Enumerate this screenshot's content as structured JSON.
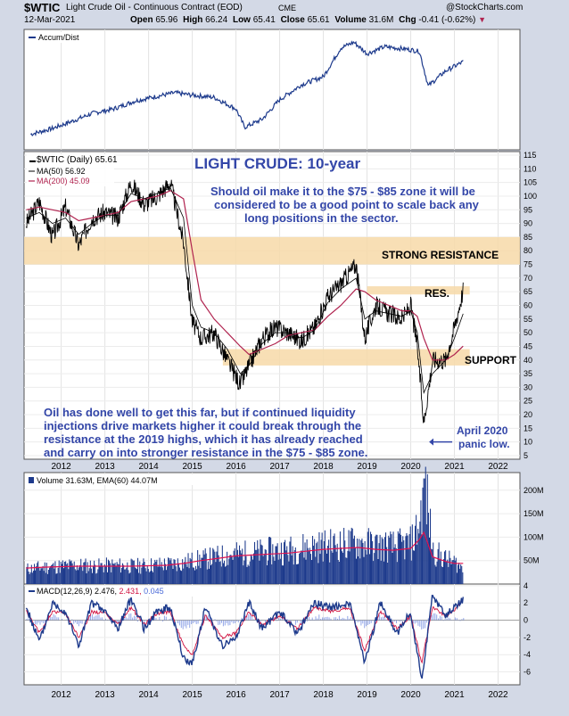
{
  "header": {
    "symbol": "$WTIC",
    "name": "Light Crude Oil - Continuous Contract (EOD)",
    "exchange": "CME",
    "source": "@StockCharts.com",
    "date": "12-Mar-2021",
    "open_label": "Open",
    "open": "65.96",
    "high_label": "High",
    "high": "66.24",
    "low_label": "Low",
    "low": "65.41",
    "close_label": "Close",
    "close": "65.61",
    "volume_label": "Volume",
    "volume": "31.6M",
    "chg_label": "Chg",
    "chg": "-0.41 (-0.62%)",
    "chg_arrow": "▼"
  },
  "annotations": {
    "title": "LIGHT CRUDE: 10-year",
    "note_line1": "Should oil make it to the $75 - $85 zone it will be",
    "note_line2": "considered to be a good point to scale back any",
    "note_line3": "long positions in the sector.",
    "strong_resistance": "STRONG RESISTANCE",
    "res": "RES.",
    "support": "SUPPORT",
    "bottom_line1": "Oil has done well to get this far, but if continued liquidity",
    "bottom_line2": "injections drive markets higher it could break through the",
    "bottom_line3": "resistance at the 2019 highs, which it has already reached",
    "bottom_line4": "and carry on into stronger resistance in the $75 - $85 zone.",
    "april_line1": "April 2020",
    "april_line2": "panic low."
  },
  "colors": {
    "frame_bg": "#d3d9e6",
    "panel_bg": "#ffffff",
    "price": "#000000",
    "ma50": "#000000",
    "ma200": "#b0234f",
    "accum": "#1d3a8c",
    "volume_bar": "#1d3a8c",
    "volume_ema": "#e0114f",
    "macd": "#1d3a8c",
    "macd_signal": "#d0113f",
    "macd_hist": "#4a6ad8",
    "zone": "#f7d9a8",
    "annotation": "#3346a8"
  },
  "chart_data": [
    {
      "type": "line",
      "panel": "accum_dist",
      "legend": [
        "Accum/Dist"
      ],
      "x": [
        2011.3,
        2011.8,
        2012.3,
        2012.7,
        2013.2,
        2013.7,
        2014.2,
        2014.6,
        2015.0,
        2015.5,
        2016.0,
        2016.2,
        2016.6,
        2017.0,
        2017.5,
        2018.0,
        2018.4,
        2018.7,
        2019.0,
        2019.4,
        2019.9,
        2020.2,
        2020.4,
        2020.8,
        2021.2
      ],
      "y": [
        12,
        17,
        24,
        30,
        34,
        41,
        45,
        48,
        46,
        44,
        34,
        18,
        25,
        42,
        55,
        62,
        87,
        92,
        82,
        88,
        86,
        84,
        54,
        67,
        75
      ],
      "ylim": [
        0,
        100
      ],
      "unit": "relative"
    },
    {
      "type": "line",
      "panel": "price",
      "legend": [
        "$WTIC (Daily) 65.61",
        "MA(50) 56.92",
        "MA(200) 45.09"
      ],
      "x": [
        2011.2,
        2011.5,
        2011.8,
        2012.1,
        2012.4,
        2012.7,
        2013.0,
        2013.3,
        2013.6,
        2013.9,
        2014.2,
        2014.5,
        2014.8,
        2015.0,
        2015.2,
        2015.5,
        2015.8,
        2016.1,
        2016.3,
        2016.6,
        2016.9,
        2017.2,
        2017.5,
        2017.8,
        2018.1,
        2018.4,
        2018.75,
        2018.95,
        2019.2,
        2019.5,
        2019.8,
        2020.0,
        2020.15,
        2020.3,
        2020.5,
        2020.8,
        2021.0,
        2021.2
      ],
      "close": [
        90,
        98,
        85,
        96,
        82,
        92,
        94,
        92,
        105,
        97,
        100,
        105,
        83,
        54,
        48,
        50,
        40,
        31,
        38,
        48,
        52,
        50,
        47,
        52,
        63,
        68,
        75,
        48,
        60,
        57,
        55,
        60,
        45,
        17,
        40,
        40,
        52,
        65.61
      ],
      "ma50": [
        92,
        94,
        90,
        92,
        86,
        90,
        93,
        93,
        101,
        99,
        101,
        103,
        92,
        60,
        52,
        50,
        44,
        35,
        38,
        46,
        50,
        50,
        48,
        51,
        61,
        66,
        70,
        55,
        58,
        57,
        56,
        58,
        50,
        28,
        35,
        40,
        48,
        56.92
      ],
      "ma200": [
        95,
        96,
        95,
        94,
        91,
        92,
        93,
        94,
        98,
        99,
        100,
        102,
        99,
        80,
        62,
        55,
        50,
        45,
        42,
        44,
        46,
        49,
        50,
        51,
        56,
        60,
        66,
        65,
        62,
        60,
        58,
        58,
        56,
        48,
        40,
        40,
        42,
        45.09
      ],
      "ylim": [
        5,
        115
      ],
      "zones": [
        {
          "label": "STRONG RESISTANCE",
          "from": 75,
          "to": 85
        },
        {
          "label": "RES.",
          "from": 64,
          "to": 67
        },
        {
          "label": "SUPPORT",
          "from": 38,
          "to": 44
        }
      ]
    },
    {
      "type": "bar",
      "panel": "volume",
      "legend": [
        "Volume 31.63M",
        "EMA(60) 44.07M"
      ],
      "x": [
        2011.2,
        2011.6,
        2012.0,
        2012.4,
        2012.8,
        2013.2,
        2013.6,
        2014.0,
        2014.4,
        2014.8,
        2015.2,
        2015.6,
        2016.0,
        2016.4,
        2016.8,
        2017.2,
        2017.6,
        2018.0,
        2018.4,
        2018.8,
        2019.2,
        2019.6,
        2020.0,
        2020.2,
        2020.3,
        2020.5,
        2020.8,
        2021.0,
        2021.2
      ],
      "volume_m": [
        32,
        36,
        38,
        40,
        38,
        40,
        38,
        40,
        42,
        46,
        52,
        58,
        64,
        66,
        70,
        72,
        78,
        82,
        84,
        88,
        82,
        80,
        86,
        130,
        225,
        70,
        52,
        46,
        31.63
      ],
      "ema60_m": [
        34,
        36,
        37,
        38,
        38,
        38,
        38,
        39,
        40,
        44,
        50,
        55,
        60,
        62,
        64,
        66,
        70,
        74,
        76,
        78,
        74,
        72,
        76,
        95,
        110,
        58,
        48,
        44,
        44.07
      ],
      "ylim": [
        0,
        230
      ],
      "unit": "M"
    },
    {
      "type": "line",
      "panel": "macd",
      "legend": [
        "MACD(12,26,9) 2.476, 2.431, 0.045"
      ],
      "x": [
        2011.2,
        2011.5,
        2011.8,
        2012.1,
        2012.4,
        2012.7,
        2013.0,
        2013.3,
        2013.6,
        2013.9,
        2014.2,
        2014.5,
        2014.8,
        2015.0,
        2015.3,
        2015.7,
        2016.0,
        2016.3,
        2016.6,
        2017.0,
        2017.4,
        2017.8,
        2018.2,
        2018.6,
        2018.95,
        2019.3,
        2019.7,
        2020.0,
        2020.25,
        2020.5,
        2020.8,
        2021.0,
        2021.2
      ],
      "macd": [
        1.5,
        -2.5,
        2.0,
        1.0,
        -3.0,
        2.0,
        1.0,
        -1.0,
        2.5,
        -1.0,
        1.0,
        1.5,
        -4.5,
        -5.0,
        1.5,
        -3.0,
        -2.0,
        2.0,
        -1.0,
        1.0,
        -1.5,
        2.0,
        1.5,
        2.0,
        -5.0,
        2.0,
        -1.5,
        1.0,
        -7.0,
        3.0,
        0.5,
        1.5,
        2.476
      ],
      "signal": [
        1.0,
        -1.5,
        1.0,
        0.8,
        -2.0,
        1.0,
        0.8,
        -0.5,
        1.5,
        -0.5,
        0.8,
        1.0,
        -3.0,
        -4.0,
        0.5,
        -2.0,
        -1.5,
        1.0,
        -0.5,
        0.5,
        -1.0,
        1.5,
        1.0,
        1.5,
        -3.5,
        1.0,
        -1.0,
        0.5,
        -5.0,
        1.5,
        0.5,
        1.2,
        2.431
      ],
      "ylim": [
        -7.5,
        4.2
      ]
    }
  ],
  "axes": {
    "year_ticks": [
      "2012",
      "2013",
      "2014",
      "2015",
      "2016",
      "2017",
      "2018",
      "2019",
      "2020",
      "2021",
      "2022"
    ],
    "price_ticks": [
      "115",
      "110",
      "105",
      "100",
      "95",
      "90",
      "85",
      "80",
      "75",
      "70",
      "65",
      "60",
      "55",
      "50",
      "45",
      "40",
      "35",
      "30",
      "25",
      "20",
      "15",
      "10",
      "5"
    ],
    "volume_ticks": [
      "200M",
      "150M",
      "100M",
      "50M"
    ],
    "macd_ticks": [
      "4",
      "2",
      "0",
      "-2",
      "-4",
      "-6"
    ]
  }
}
